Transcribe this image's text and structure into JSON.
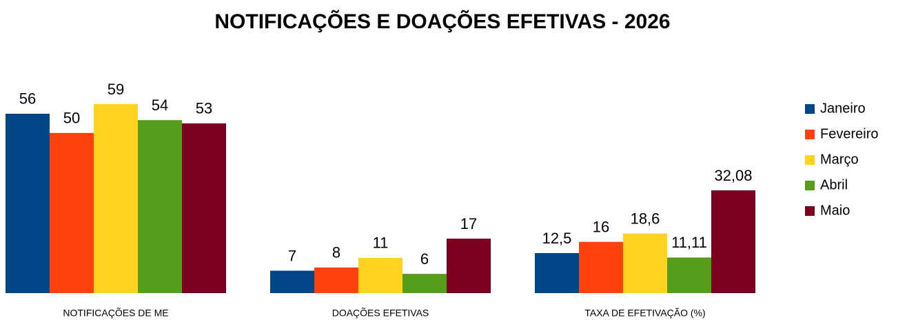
{
  "chart_data": {
    "type": "bar",
    "title": "NOTIFICAÇÕES E DOAÇÕES EFETIVAS - 2026",
    "categories": [
      "NOTIFICAÇÕES DE ME",
      "DOAÇÕES EFETIVAS",
      "TAXA DE EFETIVAÇÃO (%)"
    ],
    "series": [
      {
        "name": "Janeiro",
        "color": "#004586",
        "values": [
          56,
          7,
          12.5
        ],
        "value_labels": [
          "56",
          "7",
          "12,5"
        ]
      },
      {
        "name": "Fevereiro",
        "color": "#ff420e",
        "values": [
          50,
          8,
          16
        ],
        "value_labels": [
          "50",
          "8",
          "16"
        ]
      },
      {
        "name": "Março",
        "color": "#ffd320",
        "values": [
          59,
          11,
          18.6
        ],
        "value_labels": [
          "59",
          "11",
          "18,6"
        ]
      },
      {
        "name": "Abril",
        "color": "#579d1c",
        "values": [
          54,
          6,
          11.11
        ],
        "value_labels": [
          "54",
          "6",
          "11,11"
        ]
      },
      {
        "name": "Maio",
        "color": "#7e0021",
        "values": [
          53,
          17,
          32.08
        ],
        "value_labels": [
          "53",
          "17",
          "32,08"
        ]
      }
    ],
    "legend": "right"
  }
}
